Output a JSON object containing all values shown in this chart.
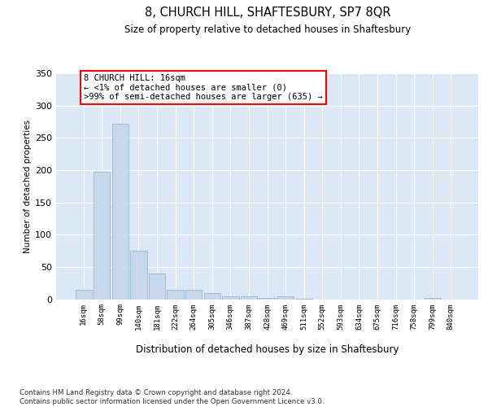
{
  "title": "8, CHURCH HILL, SHAFTESBURY, SP7 8QR",
  "subtitle": "Size of property relative to detached houses in Shaftesbury",
  "xlabel": "Distribution of detached houses by size in Shaftesbury",
  "ylabel": "Number of detached properties",
  "bar_color": "#c8d8eb",
  "bar_edge_color": "#8ab0cc",
  "background_color": "#dce8f5",
  "grid_color": "#ffffff",
  "categories": [
    "16sqm",
    "58sqm",
    "99sqm",
    "140sqm",
    "181sqm",
    "222sqm",
    "264sqm",
    "305sqm",
    "346sqm",
    "387sqm",
    "428sqm",
    "469sqm",
    "511sqm",
    "552sqm",
    "593sqm",
    "634sqm",
    "675sqm",
    "716sqm",
    "758sqm",
    "799sqm",
    "840sqm"
  ],
  "values": [
    15,
    198,
    272,
    75,
    40,
    15,
    14,
    9,
    5,
    4,
    2,
    5,
    1,
    0,
    0,
    0,
    0,
    0,
    0,
    2,
    0
  ],
  "ylim": [
    0,
    350
  ],
  "yticks": [
    0,
    50,
    100,
    150,
    200,
    250,
    300,
    350
  ],
  "annotation_line1": "8 CHURCH HILL: 16sqm",
  "annotation_line2": "← <1% of detached houses are smaller (0)",
  "annotation_line3": ">99% of semi-detached houses are larger (635) →",
  "footer_text": "Contains HM Land Registry data © Crown copyright and database right 2024.\nContains public sector information licensed under the Open Government Licence v3.0."
}
